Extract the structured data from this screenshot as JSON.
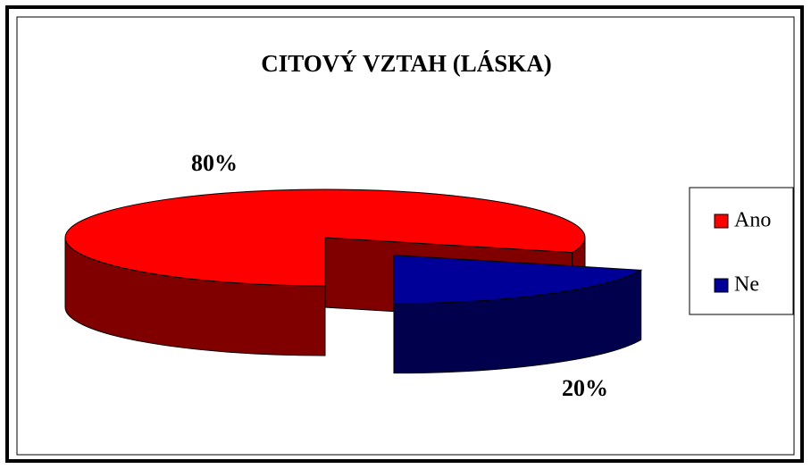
{
  "chart_data": {
    "type": "pie3d",
    "title": "CITOVÝ VZTAH (LÁSKA)",
    "categories": [
      "Ano",
      "Ne"
    ],
    "values": [
      80,
      20
    ],
    "value_labels": [
      "80%",
      "20%"
    ],
    "colors": [
      "#ff0000",
      "#000099"
    ],
    "legend": "right"
  }
}
